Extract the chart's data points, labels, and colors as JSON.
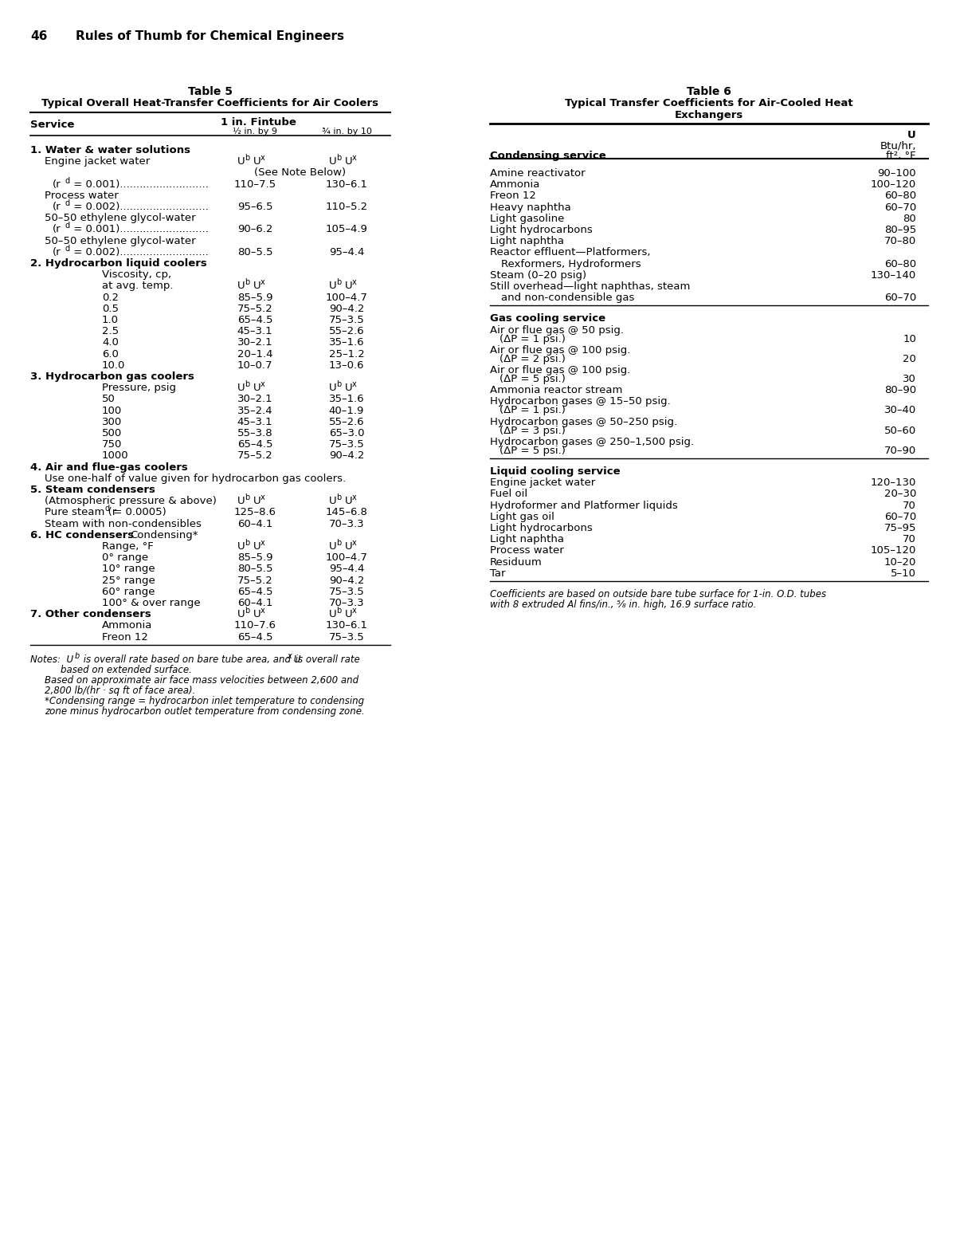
{
  "bg": "#ffffff",
  "t5_rows": [
    {
      "label": "1. Water & water solutions",
      "indent": 0,
      "bold": true,
      "v1": "",
      "v2": ""
    },
    {
      "label": "Engine jacket water",
      "indent": 1,
      "bold": false,
      "v1": "UbUx",
      "v2": "UbUx"
    },
    {
      "label": "(See Note Below)",
      "indent": 2,
      "bold": false,
      "v1": "",
      "v2": "",
      "center_span": true
    },
    {
      "label": "(r_d = 0.001)...........................",
      "indent": 2,
      "bold": false,
      "v1": "110–7.5",
      "v2": "130–6.1"
    },
    {
      "label": "Process water",
      "indent": 1,
      "bold": false,
      "v1": "",
      "v2": ""
    },
    {
      "label": "(r_d = 0.002)...........................",
      "indent": 2,
      "bold": false,
      "v1": "95–6.5",
      "v2": "110–5.2"
    },
    {
      "label": "50–50 ethylene glycol-water",
      "indent": 1,
      "bold": false,
      "v1": "",
      "v2": ""
    },
    {
      "label": "(r_d = 0.001)...........................",
      "indent": 2,
      "bold": false,
      "v1": "90–6.2",
      "v2": "105–4.9"
    },
    {
      "label": "50–50 ethylene glycol-water",
      "indent": 1,
      "bold": false,
      "v1": "",
      "v2": ""
    },
    {
      "label": "(r_d = 0.002)...........................",
      "indent": 2,
      "bold": false,
      "v1": "80–5.5",
      "v2": "95–4.4"
    },
    {
      "label": "2. Hydrocarbon liquid coolers",
      "indent": 0,
      "bold": true,
      "v1": "",
      "v2": ""
    },
    {
      "label": "Viscosity, cp,",
      "indent": 3,
      "bold": false,
      "v1": "",
      "v2": ""
    },
    {
      "label": "at avg. temp.",
      "indent": 3,
      "bold": false,
      "v1": "UbUx",
      "v2": "UbUx"
    },
    {
      "label": "0.2",
      "indent": 3,
      "bold": false,
      "v1": "85–5.9",
      "v2": "100–4.7"
    },
    {
      "label": "0.5",
      "indent": 3,
      "bold": false,
      "v1": "75–5.2",
      "v2": "90–4.2"
    },
    {
      "label": "1.0",
      "indent": 3,
      "bold": false,
      "v1": "65–4.5",
      "v2": "75–3.5"
    },
    {
      "label": "2.5",
      "indent": 3,
      "bold": false,
      "v1": "45–3.1",
      "v2": "55–2.6"
    },
    {
      "label": "4.0",
      "indent": 3,
      "bold": false,
      "v1": "30–2.1",
      "v2": "35–1.6"
    },
    {
      "label": "6.0",
      "indent": 3,
      "bold": false,
      "v1": "20–1.4",
      "v2": "25–1.2"
    },
    {
      "label": "10.0",
      "indent": 3,
      "bold": false,
      "v1": "10–0.7",
      "v2": "13–0.6"
    },
    {
      "label": "3. Hydrocarbon gas coolers",
      "indent": 0,
      "bold": true,
      "v1": "",
      "v2": ""
    },
    {
      "label": "Pressure, psig",
      "indent": 3,
      "bold": false,
      "v1": "UbUx",
      "v2": "UbUx"
    },
    {
      "label": "50",
      "indent": 3,
      "bold": false,
      "v1": "30–2.1",
      "v2": "35–1.6"
    },
    {
      "label": "100",
      "indent": 3,
      "bold": false,
      "v1": "35–2.4",
      "v2": "40–1.9"
    },
    {
      "label": "300",
      "indent": 3,
      "bold": false,
      "v1": "45–3.1",
      "v2": "55–2.6"
    },
    {
      "label": "500",
      "indent": 3,
      "bold": false,
      "v1": "55–3.8",
      "v2": "65–3.0"
    },
    {
      "label": "750",
      "indent": 3,
      "bold": false,
      "v1": "65–4.5",
      "v2": "75–3.5"
    },
    {
      "label": "1000",
      "indent": 3,
      "bold": false,
      "v1": "75–5.2",
      "v2": "90–4.2"
    },
    {
      "label": "4. Air and flue-gas coolers",
      "indent": 0,
      "bold": true,
      "v1": "",
      "v2": ""
    },
    {
      "label": "Use one-half of value given for hydrocarbon gas coolers.",
      "indent": 1,
      "bold": false,
      "v1": "",
      "v2": ""
    },
    {
      "label": "5. Steam condensers",
      "indent": 0,
      "bold": true,
      "v1": "",
      "v2": ""
    },
    {
      "label": "(Atmospheric pressure & above)",
      "indent": 1,
      "bold": false,
      "v1": "UbUx",
      "v2": "UbUx"
    },
    {
      "label": "Pure steam (r_d = 0.0005)",
      "indent": 1,
      "bold": false,
      "v1": "125–8.6",
      "v2": "145–6.8"
    },
    {
      "label": "Steam with non-condensibles",
      "indent": 1,
      "bold": false,
      "v1": "60–4.1",
      "v2": "70–3.3"
    },
    {
      "label": "6. HC condensers    Condensing*",
      "indent": 0,
      "bold": true,
      "v1": "",
      "v2": "",
      "split_bold": true
    },
    {
      "label": "Range, °F",
      "indent": 3,
      "bold": false,
      "v1": "UbUx",
      "v2": "UbUx"
    },
    {
      "label": "0° range",
      "indent": 3,
      "bold": false,
      "v1": "85–5.9",
      "v2": "100–4.7"
    },
    {
      "label": "10° range",
      "indent": 3,
      "bold": false,
      "v1": "80–5.5",
      "v2": "95–4.4"
    },
    {
      "label": "25° range",
      "indent": 3,
      "bold": false,
      "v1": "75–5.2",
      "v2": "90–4.2"
    },
    {
      "label": "60° range",
      "indent": 3,
      "bold": false,
      "v1": "65–4.5",
      "v2": "75–3.5"
    },
    {
      "label": "100° & over range",
      "indent": 3,
      "bold": false,
      "v1": "60–4.1",
      "v2": "70–3.3"
    },
    {
      "label": "7. Other condensers",
      "indent": 0,
      "bold": true,
      "v1": "UbUx",
      "v2": "UbUx"
    },
    {
      "label": "Ammonia",
      "indent": 3,
      "bold": false,
      "v1": "110–7.6",
      "v2": "130–6.1"
    },
    {
      "label": "Freon 12",
      "indent": 3,
      "bold": false,
      "v1": "65–4.5",
      "v2": "75–3.5"
    }
  ],
  "t6_cond": [
    {
      "label": "Amine reactivator",
      "v": "90–100"
    },
    {
      "label": "Ammonia",
      "v": "100–120"
    },
    {
      "label": "Freon 12",
      "v": "60–80"
    },
    {
      "label": "Heavy naphtha",
      "v": "60–70"
    },
    {
      "label": "Light gasoline",
      "v": "80"
    },
    {
      "label": "Light hydrocarbons",
      "v": "80–95"
    },
    {
      "label": "Light naphtha",
      "v": "70–80"
    },
    {
      "label": "Reactor effluent—Platformers,",
      "v": ""
    },
    {
      "label": "   Rexformers, Hydroformers",
      "v": "60–80"
    },
    {
      "label": "Steam (0–20 psig)",
      "v": "130–140"
    },
    {
      "label": "Still overhead—light naphthas, steam",
      "v": ""
    },
    {
      "label": "   and non-condensible gas",
      "v": "60–70"
    }
  ],
  "t6_gas": [
    {
      "label": "Air or flue gas @ 50 psig.",
      "sub": "(ΔP = 1 psi.)",
      "v": "10"
    },
    {
      "label": "Air or flue gas @ 100 psig.",
      "sub": "(ΔP = 2 psi.)",
      "v": "20"
    },
    {
      "label": "Air or flue gas @ 100 psig.",
      "sub": "(ΔP = 5 psi.)",
      "v": "30"
    },
    {
      "label": "Ammonia reactor stream",
      "sub": "",
      "v": "80–90"
    },
    {
      "label": "Hydrocarbon gases @ 15–50 psig.",
      "sub": "(ΔP = 1 psi.)",
      "v": "30–40"
    },
    {
      "label": "Hydrocarbon gases @ 50–250 psig.",
      "sub": "(ΔP = 3 psi.)",
      "v": "50–60"
    },
    {
      "label": "Hydrocarbon gases @ 250–1,500 psig.",
      "sub": "(ΔP = 5 psi.)",
      "v": "70–90"
    }
  ],
  "t6_liq": [
    {
      "label": "Engine jacket water",
      "v": "120–130"
    },
    {
      "label": "Fuel oil",
      "v": "20–30"
    },
    {
      "label": "Hydroformer and Platformer liquids",
      "v": "70"
    },
    {
      "label": "Light gas oil",
      "v": "60–70"
    },
    {
      "label": "Light hydrocarbons",
      "v": "75–95"
    },
    {
      "label": "Light naphtha",
      "v": "70"
    },
    {
      "label": "Process water",
      "v": "105–120"
    },
    {
      "label": "Residuum",
      "v": "10–20"
    },
    {
      "label": "Tar",
      "v": "5–10"
    }
  ]
}
